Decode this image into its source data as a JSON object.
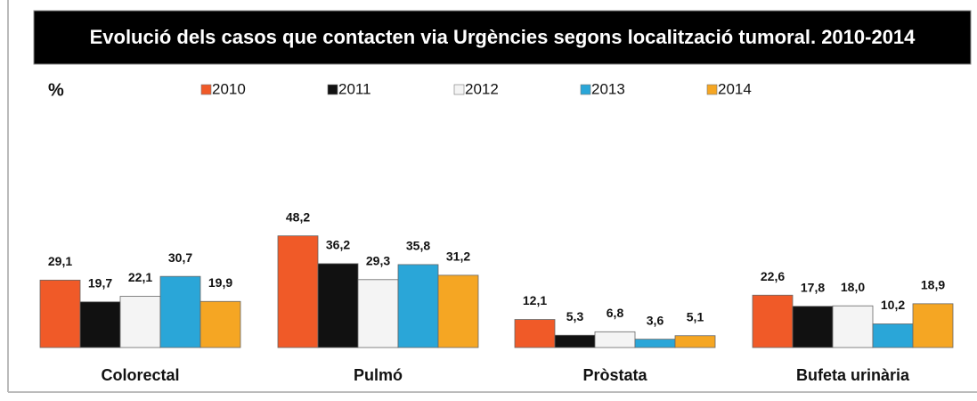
{
  "chart_data": {
    "type": "bar",
    "title": "Evolució dels casos que contacten via Urgències segons localització tumoral. 2010-2014",
    "y_label": "%",
    "categories": [
      "Colorectal",
      "Pulmó",
      "Pròstata",
      "Bufeta urinària"
    ],
    "series": [
      {
        "name": "2010",
        "color": "#f05a28",
        "values": [
          29.1,
          48.2,
          12.1,
          22.6
        ],
        "value_labels": [
          "29,1",
          "48,2",
          "12,1",
          "22,6"
        ]
      },
      {
        "name": "2011",
        "color": "#111111",
        "values": [
          19.7,
          36.2,
          5.3,
          17.8
        ],
        "value_labels": [
          "19,7",
          "36,2",
          "5,3",
          "17,8"
        ]
      },
      {
        "name": "2012",
        "color": "#f4f4f4",
        "values": [
          22.1,
          29.3,
          6.8,
          18.0
        ],
        "value_labels": [
          "22,1",
          "29,3",
          "6,8",
          "18,0"
        ]
      },
      {
        "name": "2013",
        "color": "#2aa6d8",
        "values": [
          30.7,
          35.8,
          3.6,
          10.2
        ],
        "value_labels": [
          "30,7",
          "35,8",
          "3,6",
          "10,2"
        ]
      },
      {
        "name": "2014",
        "color": "#f5a623",
        "values": [
          19.9,
          31.2,
          5.1,
          18.9
        ],
        "value_labels": [
          "19,9",
          "31,2",
          "5,1",
          "18,9"
        ]
      }
    ]
  }
}
